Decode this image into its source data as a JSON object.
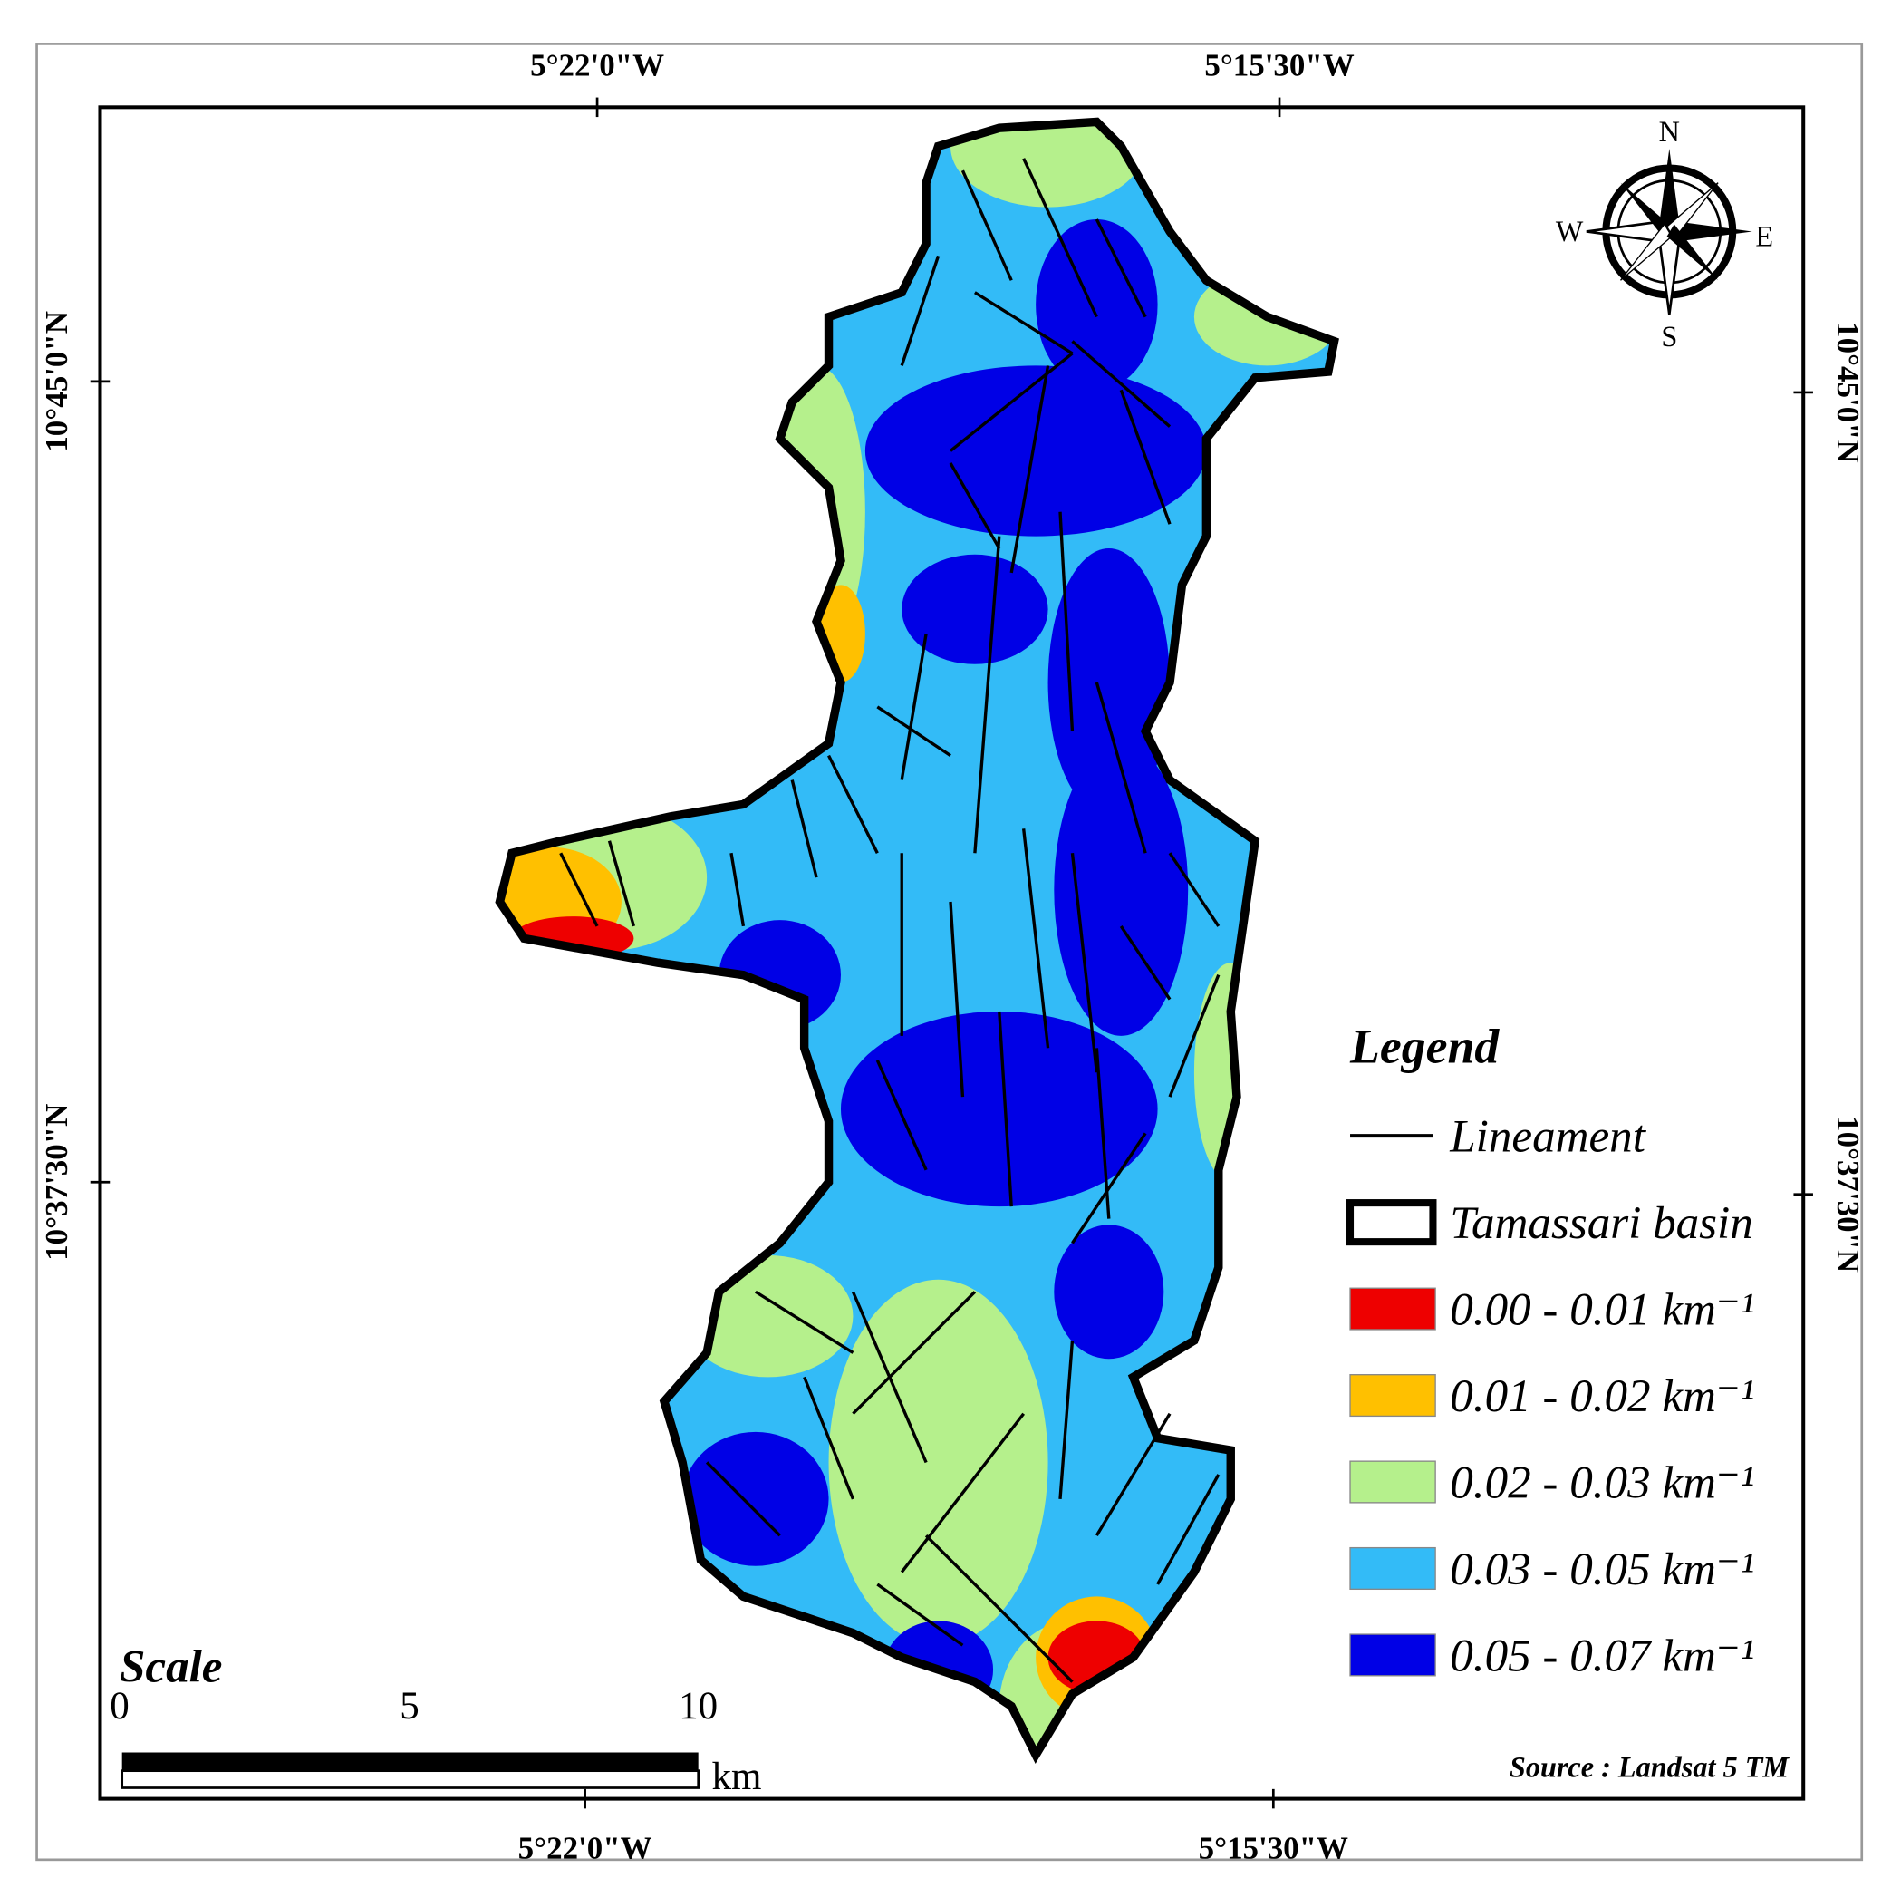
{
  "map": {
    "top_labels": [
      "5°22'0\"W",
      "5°15'30\"W"
    ],
    "bottom_labels": [
      "5°22'0\"W",
      "5°15'30\"W"
    ],
    "left_labels": [
      "10°45'0\"N",
      "10°37'30\"N"
    ],
    "right_labels": [
      "10°45'0\"N",
      "10°37'30\"N"
    ]
  },
  "compass": {
    "n": "N",
    "s": "S",
    "e": "E",
    "w": "W"
  },
  "legend": {
    "title": "Legend",
    "items": [
      {
        "label": "Lineament"
      },
      {
        "label": "Tamassari basin"
      },
      {
        "label": "0.00 - 0.01 km⁻¹",
        "color": "#ee0000"
      },
      {
        "label": "0.01 - 0.02 km⁻¹",
        "color": "#ffc000"
      },
      {
        "label": "0.02 - 0.03 km⁻¹",
        "color": "#b5f08c"
      },
      {
        "label": "0.03 - 0.05 km⁻¹",
        "color": "#33bbf7"
      },
      {
        "label": "0.05 - 0.07 km⁻¹",
        "color": "#0000e6"
      }
    ]
  },
  "scale": {
    "title": "Scale",
    "ticks": [
      "0",
      "5",
      "10"
    ],
    "unit": "km"
  },
  "source": "Source : Landsat 5 TM"
}
